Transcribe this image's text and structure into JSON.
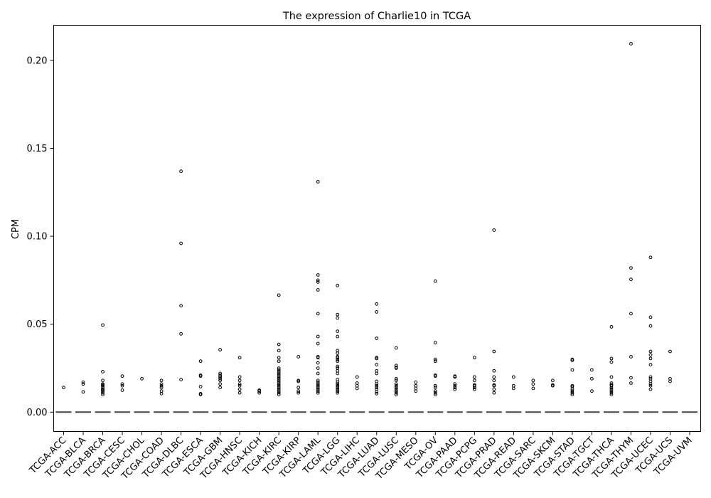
{
  "chart_data": {
    "type": "box",
    "title": "The expression of Charlie10 in TCGA",
    "xlabel": "",
    "ylabel": "CPM",
    "ylim": [
      -0.011,
      0.22
    ],
    "yticks": [
      0.0,
      0.05,
      0.1,
      0.15,
      0.2
    ],
    "ytick_labels": [
      "0.00",
      "0.05",
      "0.10",
      "0.15",
      "0.20"
    ],
    "grid": false,
    "categories": [
      "TCGA-ACC",
      "TCGA-BLCA",
      "TCGA-BRCA",
      "TCGA-CESC",
      "TCGA-CHOL",
      "TCGA-COAD",
      "TCGA-DLBC",
      "TCGA-ESCA",
      "TCGA-GBM",
      "TCGA-HNSC",
      "TCGA-KICH",
      "TCGA-KIRC",
      "TCGA-KIRP",
      "TCGA-LAML",
      "TCGA-LGG",
      "TCGA-LIHC",
      "TCGA-LUAD",
      "TCGA-LUSC",
      "TCGA-MESO",
      "TCGA-OV",
      "TCGA-PAAD",
      "TCGA-PCPG",
      "TCGA-PRAD",
      "TCGA-READ",
      "TCGA-SARC",
      "TCGA-SKCM",
      "TCGA-STAD",
      "TCGA-TGCT",
      "TCGA-THCA",
      "TCGA-THYM",
      "TCGA-UCEC",
      "TCGA-UCS",
      "TCGA-UVM"
    ],
    "median": 0.0,
    "outliers": [
      [
        0.014
      ],
      [
        0.017,
        0.016,
        0.0115
      ],
      [
        0.0495,
        0.023,
        0.018,
        0.016,
        0.015,
        0.014,
        0.013,
        0.012,
        0.011,
        0.01,
        0.0155,
        0.0125
      ],
      [
        0.0205,
        0.016,
        0.015,
        0.0125
      ],
      [
        0.019
      ],
      [
        0.018,
        0.016,
        0.015,
        0.014,
        0.012,
        0.0105
      ],
      [
        0.137,
        0.096,
        0.0605,
        0.0445,
        0.0185
      ],
      [
        0.029,
        0.021,
        0.0205,
        0.0145,
        0.0105,
        0.01
      ],
      [
        0.0355,
        0.022,
        0.021,
        0.02,
        0.019,
        0.018,
        0.016,
        0.014
      ],
      [
        0.031,
        0.02,
        0.018,
        0.016,
        0.015,
        0.013,
        0.011
      ],
      [
        0.0125,
        0.012,
        0.011
      ],
      [
        0.0665,
        0.0385,
        0.035,
        0.031,
        0.029,
        0.025,
        0.024,
        0.023,
        0.022,
        0.021,
        0.02,
        0.019,
        0.018,
        0.017,
        0.016,
        0.015,
        0.014,
        0.013,
        0.012,
        0.011,
        0.01
      ],
      [
        0.0315,
        0.018,
        0.0175,
        0.014,
        0.012,
        0.011
      ],
      [
        0.131,
        0.078,
        0.075,
        0.074,
        0.0695,
        0.056,
        0.043,
        0.039,
        0.0315,
        0.031,
        0.028,
        0.025,
        0.022,
        0.018,
        0.017,
        0.016,
        0.015,
        0.014,
        0.013,
        0.012,
        0.011
      ],
      [
        0.072,
        0.0555,
        0.0535,
        0.046,
        0.043,
        0.035,
        0.0335,
        0.0315,
        0.031,
        0.03,
        0.029,
        0.026,
        0.025,
        0.0235,
        0.022,
        0.0185,
        0.017,
        0.016,
        0.015,
        0.014,
        0.013,
        0.012,
        0.011
      ],
      [
        0.02,
        0.0165,
        0.015,
        0.0135
      ],
      [
        0.0615,
        0.057,
        0.042,
        0.031,
        0.0305,
        0.027,
        0.0235,
        0.022,
        0.0175,
        0.016,
        0.015,
        0.014,
        0.013,
        0.0115,
        0.0105
      ],
      [
        0.0365,
        0.0265,
        0.0255,
        0.025,
        0.019,
        0.018,
        0.016,
        0.015,
        0.014,
        0.013,
        0.012,
        0.011,
        0.01
      ],
      [
        0.017,
        0.015,
        0.0135,
        0.012
      ],
      [
        0.0745,
        0.0395,
        0.03,
        0.029,
        0.021,
        0.0205,
        0.015,
        0.014,
        0.012,
        0.011,
        0.01
      ],
      [
        0.0205,
        0.02,
        0.016,
        0.015,
        0.014,
        0.013
      ],
      [
        0.031,
        0.02,
        0.018,
        0.0155,
        0.015,
        0.014,
        0.013
      ],
      [
        0.1035,
        0.0345,
        0.0235,
        0.02,
        0.018,
        0.0155,
        0.015,
        0.013,
        0.011
      ],
      [
        0.02,
        0.015,
        0.0135
      ],
      [
        0.018,
        0.016,
        0.0135
      ],
      [
        0.018,
        0.0155,
        0.015
      ],
      [
        0.03,
        0.0295,
        0.024,
        0.015,
        0.0145,
        0.013,
        0.012,
        0.011,
        0.01
      ],
      [
        0.024,
        0.019,
        0.012
      ],
      [
        0.0485,
        0.0305,
        0.0285,
        0.02,
        0.0165,
        0.0155,
        0.015,
        0.014,
        0.013,
        0.012,
        0.011,
        0.01
      ],
      [
        0.2095,
        0.082,
        0.0755,
        0.056,
        0.0315,
        0.0195,
        0.0165
      ],
      [
        0.088,
        0.054,
        0.049,
        0.0345,
        0.0325,
        0.0305,
        0.027,
        0.02,
        0.019,
        0.0175,
        0.016,
        0.015,
        0.013
      ],
      [
        0.0345,
        0.019,
        0.0175
      ],
      []
    ]
  }
}
